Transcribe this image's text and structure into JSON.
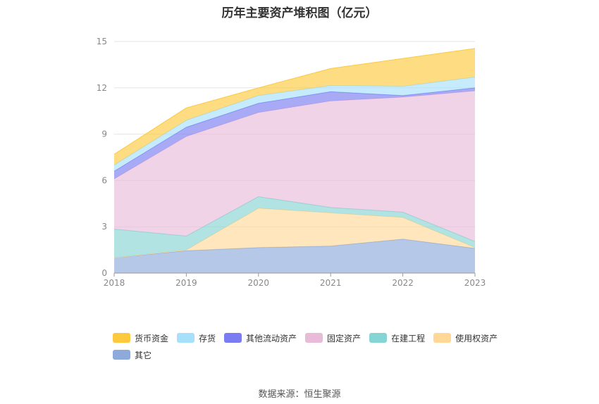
{
  "chart_data": {
    "type": "area",
    "title": "历年主要资产堆积图（亿元）",
    "categories": [
      "2018",
      "2019",
      "2020",
      "2021",
      "2022",
      "2023"
    ],
    "yticks": [
      "0",
      "3",
      "6",
      "9",
      "12",
      "15"
    ],
    "ylim": [
      0,
      15
    ],
    "grid": true,
    "legend_position": "bottom",
    "stacked": true,
    "series": [
      {
        "name": "其它",
        "color": "#8eaadb",
        "values": [
          1.0,
          1.45,
          1.65,
          1.75,
          2.2,
          1.6
        ]
      },
      {
        "name": "使用权资产",
        "color": "#ffd898",
        "values": [
          0.0,
          0.05,
          2.55,
          2.15,
          1.4,
          0.05
        ]
      },
      {
        "name": "在建工程",
        "color": "#87d4d4",
        "values": [
          1.85,
          0.9,
          0.75,
          0.35,
          0.35,
          0.4
        ]
      },
      {
        "name": "固定资产",
        "color": "#e8bcd9",
        "values": [
          3.25,
          6.45,
          5.45,
          6.9,
          7.45,
          9.75
        ]
      },
      {
        "name": "其他流动资产",
        "color": "#7b7cf1",
        "values": [
          0.5,
          0.6,
          0.6,
          0.6,
          0.1,
          0.2
        ]
      },
      {
        "name": "存货",
        "color": "#a6e0fa",
        "values": [
          0.4,
          0.45,
          0.5,
          0.4,
          0.6,
          0.7
        ]
      },
      {
        "name": "货币资金",
        "color": "#fcc93f",
        "values": [
          0.7,
          0.8,
          0.5,
          1.1,
          1.8,
          1.85
        ]
      }
    ],
    "legend_order": [
      "货币资金",
      "存货",
      "其他流动资产",
      "固定资产",
      "在建工程",
      "使用权资产",
      "其它"
    ]
  },
  "source": "数据来源：恒生聚源"
}
